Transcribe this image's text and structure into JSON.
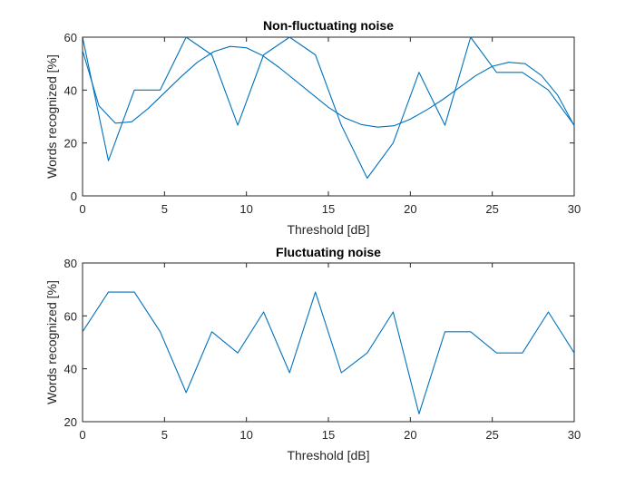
{
  "chart_data": [
    {
      "type": "line",
      "title": "Non-fluctuating noise",
      "xlabel": "Threshold [dB]",
      "ylabel": "Words recognized [%]",
      "xlim": [
        0,
        30
      ],
      "ylim": [
        0,
        60
      ],
      "xticks": [
        "0",
        "5",
        "10",
        "15",
        "20",
        "25",
        "30"
      ],
      "yticks": [
        "0",
        "20",
        "40",
        "60"
      ],
      "grid": false,
      "legend": "none",
      "color": "#0072BD",
      "series": [
        {
          "x": [
            0,
            1.58,
            3.16,
            4.74,
            6.32,
            7.89,
            9.47,
            11.05,
            12.63,
            14.21,
            15.79,
            17.37,
            18.95,
            20.53,
            22.11,
            23.68,
            25.26,
            26.84,
            28.42,
            30
          ],
          "values": [
            60,
            13.3,
            40,
            40,
            60,
            53.3,
            26.7,
            53.3,
            60,
            53.3,
            26.7,
            6.7,
            20,
            46.7,
            26.7,
            60,
            46.7,
            46.7,
            40,
            26.7
          ]
        },
        {
          "x": [
            0,
            1,
            2,
            3,
            4,
            5,
            6,
            7,
            8,
            9,
            10,
            11,
            12,
            13,
            14,
            15,
            16,
            17,
            18,
            19,
            20,
            21,
            22,
            23,
            24,
            25,
            26,
            27,
            28,
            29,
            30
          ],
          "values": [
            55,
            34,
            27.5,
            28,
            33,
            39,
            45,
            50.5,
            54.5,
            56.5,
            56,
            53,
            48.5,
            43.5,
            38.5,
            33.5,
            29.5,
            27,
            26,
            26.5,
            29,
            32.5,
            36.5,
            41,
            45.5,
            49,
            50.5,
            50,
            45.5,
            38,
            26.5
          ]
        }
      ]
    },
    {
      "type": "line",
      "title": "Fluctuating noise",
      "xlabel": "Threshold [dB]",
      "ylabel": "Words recognized [%]",
      "xlim": [
        0,
        30
      ],
      "ylim": [
        20,
        80
      ],
      "xticks": [
        "0",
        "5",
        "10",
        "15",
        "20",
        "25",
        "30"
      ],
      "yticks": [
        "20",
        "40",
        "60",
        "80"
      ],
      "grid": false,
      "legend": "none",
      "color": "#0072BD",
      "series": [
        {
          "x": [
            0,
            1.58,
            3.16,
            4.74,
            6.32,
            7.89,
            9.47,
            11.05,
            12.63,
            14.21,
            15.79,
            17.37,
            18.95,
            20.53,
            22.11,
            23.68,
            25.26,
            26.84,
            28.42,
            30
          ],
          "values": [
            54,
            69,
            69,
            54,
            31,
            54,
            46,
            61.5,
            38.5,
            69,
            38.5,
            46,
            61.5,
            23,
            54,
            54,
            46,
            46,
            61.5,
            46
          ]
        }
      ]
    }
  ]
}
